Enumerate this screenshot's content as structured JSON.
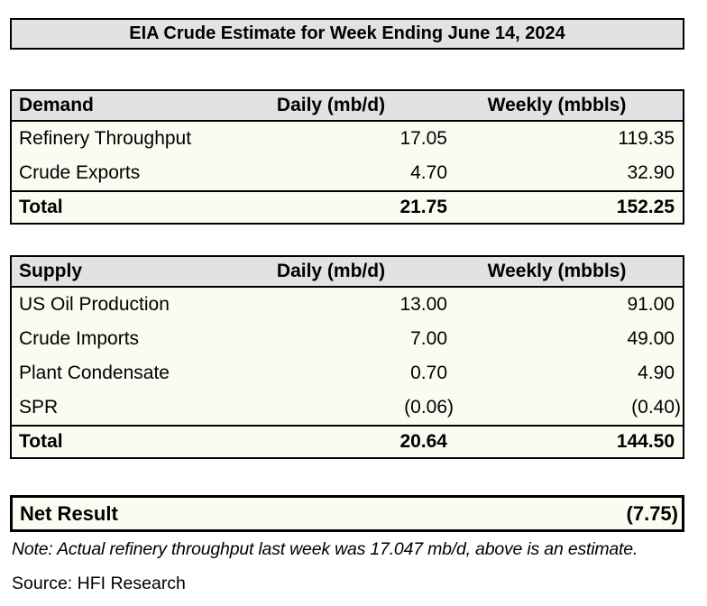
{
  "title": "EIA Crude Estimate for Week Ending June 14, 2024",
  "demand_table": {
    "headers": {
      "category": "Demand",
      "daily": "Daily (mb/d)",
      "weekly": "Weekly (mbbls)"
    },
    "rows": [
      {
        "label": "Refinery Throughput",
        "daily": "17.05",
        "weekly": "119.35"
      },
      {
        "label": "Crude Exports",
        "daily": "4.70",
        "weekly": "32.90"
      }
    ],
    "total": {
      "label": "Total",
      "daily": "21.75",
      "weekly": "152.25"
    }
  },
  "supply_table": {
    "headers": {
      "category": "Supply",
      "daily": "Daily (mb/d)",
      "weekly": "Weekly (mbbls)"
    },
    "rows": [
      {
        "label": "US Oil Production",
        "daily": "13.00",
        "weekly": "91.00"
      },
      {
        "label": "Crude Imports",
        "daily": "7.00",
        "weekly": "49.00"
      },
      {
        "label": "Plant Condensate",
        "daily": "0.70",
        "weekly": "4.90"
      },
      {
        "label": "SPR",
        "daily": "(0.06)",
        "weekly": "(0.40)"
      }
    ],
    "total": {
      "label": "Total",
      "daily": "20.64",
      "weekly": "144.50"
    }
  },
  "net_result": {
    "label": "Net Result",
    "value": "(7.75)"
  },
  "note": "Note: Actual refinery throughput last week was 17.047 mb/d, above is an estimate.",
  "source": "Source: HFI Research",
  "colors": {
    "header_bg": "#e2e2e2",
    "row_bg": "#fcfbf2",
    "border": "#000000",
    "text": "#000000",
    "page_bg": "#ffffff"
  }
}
